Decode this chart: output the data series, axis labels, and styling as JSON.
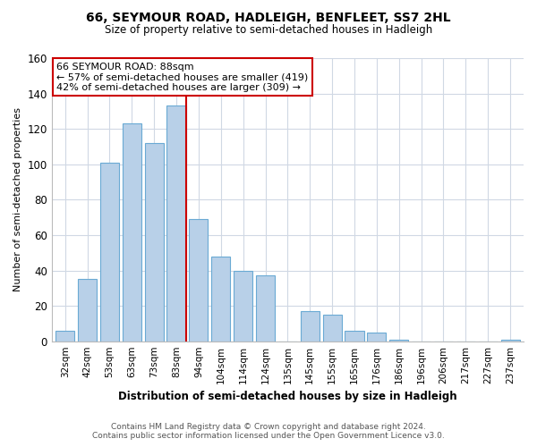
{
  "title": "66, SEYMOUR ROAD, HADLEIGH, BENFLEET, SS7 2HL",
  "subtitle": "Size of property relative to semi-detached houses in Hadleigh",
  "xlabel": "Distribution of semi-detached houses by size in Hadleigh",
  "ylabel": "Number of semi-detached properties",
  "bar_labels": [
    "32sqm",
    "42sqm",
    "53sqm",
    "63sqm",
    "73sqm",
    "83sqm",
    "94sqm",
    "104sqm",
    "114sqm",
    "124sqm",
    "135sqm",
    "145sqm",
    "155sqm",
    "165sqm",
    "176sqm",
    "186sqm",
    "196sqm",
    "206sqm",
    "217sqm",
    "227sqm",
    "237sqm"
  ],
  "bar_values": [
    6,
    35,
    101,
    123,
    112,
    133,
    69,
    48,
    40,
    37,
    0,
    17,
    15,
    6,
    5,
    1,
    0,
    0,
    0,
    0,
    1
  ],
  "bar_color": "#b8d0e8",
  "bar_edge_color": "#6aaad4",
  "vline_after_index": 5,
  "vline_color": "#cc0000",
  "ylim": [
    0,
    160
  ],
  "yticks": [
    0,
    20,
    40,
    60,
    80,
    100,
    120,
    140,
    160
  ],
  "annotation_title": "66 SEYMOUR ROAD: 88sqm",
  "annotation_line1": "← 57% of semi-detached houses are smaller (419)",
  "annotation_line2": "42% of semi-detached houses are larger (309) →",
  "annotation_box_color": "#ffffff",
  "annotation_box_edge": "#cc0000",
  "footer_line1": "Contains HM Land Registry data © Crown copyright and database right 2024.",
  "footer_line2": "Contains public sector information licensed under the Open Government Licence v3.0.",
  "background_color": "#ffffff",
  "grid_color": "#d0d8e4"
}
